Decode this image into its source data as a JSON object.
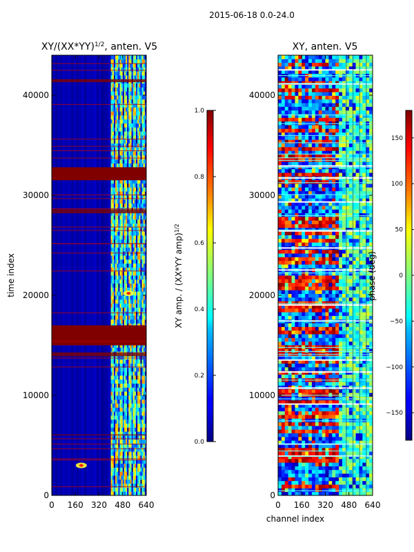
{
  "suptitle": "2015-06-18 0.0-24.0",
  "colors": {
    "background": "#000080",
    "saturated": "#800000",
    "band": "#66ffff",
    "band_hot": "#ffff33",
    "axis": "#000000"
  },
  "chart_data": [
    {
      "type": "heatmap",
      "title_main": "XY/(XX*YY)",
      "title_exp": "1/2",
      "title_suffix": ", anten. V5",
      "xlabel": "",
      "ylabel": "time index",
      "xlim": [
        0,
        640
      ],
      "ylim": [
        0,
        44000
      ],
      "xticks": [
        0,
        160,
        320,
        480,
        640
      ],
      "yticks": [
        0,
        10000,
        20000,
        30000,
        40000
      ],
      "active_band": [
        400,
        640
      ],
      "saturated_rows": [
        {
          "start": 31500,
          "end": 32800
        },
        {
          "start": 41300,
          "end": 41600
        },
        {
          "start": 15000,
          "end": 17000
        },
        {
          "start": 13900,
          "end": 14300
        },
        {
          "start": 28200,
          "end": 28600
        },
        {
          "start": 6000,
          "end": 6100
        }
      ],
      "hotspots": [
        {
          "x": 200,
          "y": 3000,
          "label": ""
        },
        {
          "x": 520,
          "y": 20200,
          "label": ""
        }
      ],
      "colorbar": {
        "label_main": "XY amp. / (XX*YY amp)",
        "label_exp": "1/2",
        "range": [
          0.0,
          1.0
        ],
        "ticks": [
          "0.0",
          "0.2",
          "0.4",
          "0.6",
          "0.8",
          "1.0"
        ],
        "colormap": "jet"
      }
    },
    {
      "type": "heatmap",
      "title_main": "XY, anten. V5",
      "xlabel": "channel index",
      "ylabel": "",
      "xlim": [
        0,
        640
      ],
      "ylim": [
        0,
        44000
      ],
      "xticks": [
        0,
        160,
        320,
        480,
        640
      ],
      "yticks": [
        0,
        10000,
        20000,
        30000,
        40000
      ],
      "active_band": [
        400,
        640
      ],
      "white_rows": [
        4000,
        5200,
        9200,
        10800,
        12400,
        13600,
        17500,
        19100,
        22600,
        24800,
        26500,
        29400,
        31800,
        33000,
        41200,
        42600
      ],
      "colorbar": {
        "label_main": "phase (deg)",
        "range": [
          -180,
          180
        ],
        "ticks": [
          "150",
          "100",
          "50",
          "0",
          "−50",
          "−100",
          "−150"
        ],
        "colormap": "jet"
      }
    }
  ]
}
